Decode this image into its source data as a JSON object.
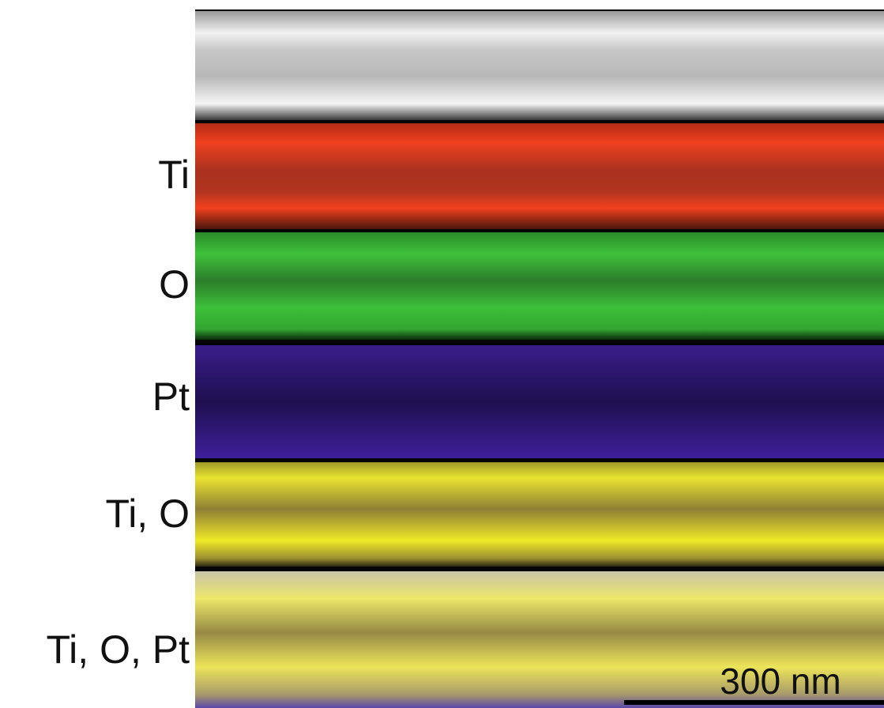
{
  "figure": {
    "panels": [
      {
        "label": "Ti"
      },
      {
        "label": "O"
      },
      {
        "label": "Pt"
      },
      {
        "label": "Ti, O"
      },
      {
        "label": "Ti, O, Pt"
      }
    ],
    "scale_bar": "300 nm"
  }
}
